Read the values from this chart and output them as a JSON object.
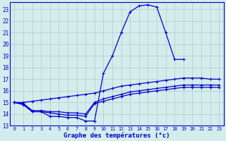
{
  "hours": [
    0,
    1,
    2,
    3,
    4,
    5,
    6,
    7,
    8,
    9,
    10,
    11,
    12,
    13,
    14,
    15,
    16,
    17,
    18,
    19,
    20,
    21,
    22,
    23
  ],
  "temp_main": [
    15.0,
    14.9,
    14.2,
    14.2,
    13.8,
    13.8,
    13.7,
    13.7,
    13.4,
    13.4,
    17.5,
    19.0,
    21.0,
    22.8,
    23.3,
    23.4,
    23.2,
    21.0,
    18.7,
    18.7,
    null,
    null,
    null,
    null
  ],
  "temp_line1": [
    15.0,
    15.0,
    15.1,
    15.2,
    15.3,
    15.4,
    15.5,
    15.6,
    15.7,
    15.8,
    16.0,
    16.2,
    16.4,
    16.5,
    16.6,
    16.7,
    16.8,
    16.9,
    17.0,
    17.1,
    17.1,
    17.1,
    17.0,
    17.0
  ],
  "temp_line2": [
    15.0,
    14.9,
    14.3,
    14.3,
    14.2,
    14.2,
    14.1,
    14.1,
    14.0,
    15.0,
    15.3,
    15.5,
    15.7,
    15.9,
    16.0,
    16.1,
    16.2,
    16.3,
    16.4,
    16.5,
    16.5,
    16.5,
    16.5,
    16.5
  ],
  "temp_line3": [
    15.0,
    14.8,
    14.2,
    14.2,
    14.1,
    14.0,
    13.9,
    13.9,
    13.8,
    14.9,
    15.1,
    15.3,
    15.5,
    15.7,
    15.8,
    15.9,
    16.0,
    16.1,
    16.2,
    16.3,
    16.3,
    16.3,
    16.3,
    16.3
  ],
  "line_color": "#0000cc",
  "bg_color": "#d4ecec",
  "grid_color": "#b0cccc",
  "xlabel": "Graphe des températures (°c)",
  "ylim": [
    13,
    23.6
  ],
  "xlim": [
    -0.5,
    23.5
  ],
  "yticks": [
    13,
    14,
    15,
    16,
    17,
    18,
    19,
    20,
    21,
    22,
    23
  ],
  "xticks": [
    0,
    1,
    2,
    3,
    4,
    5,
    6,
    7,
    8,
    9,
    10,
    11,
    12,
    13,
    14,
    15,
    16,
    17,
    18,
    19,
    20,
    21,
    22,
    23
  ]
}
